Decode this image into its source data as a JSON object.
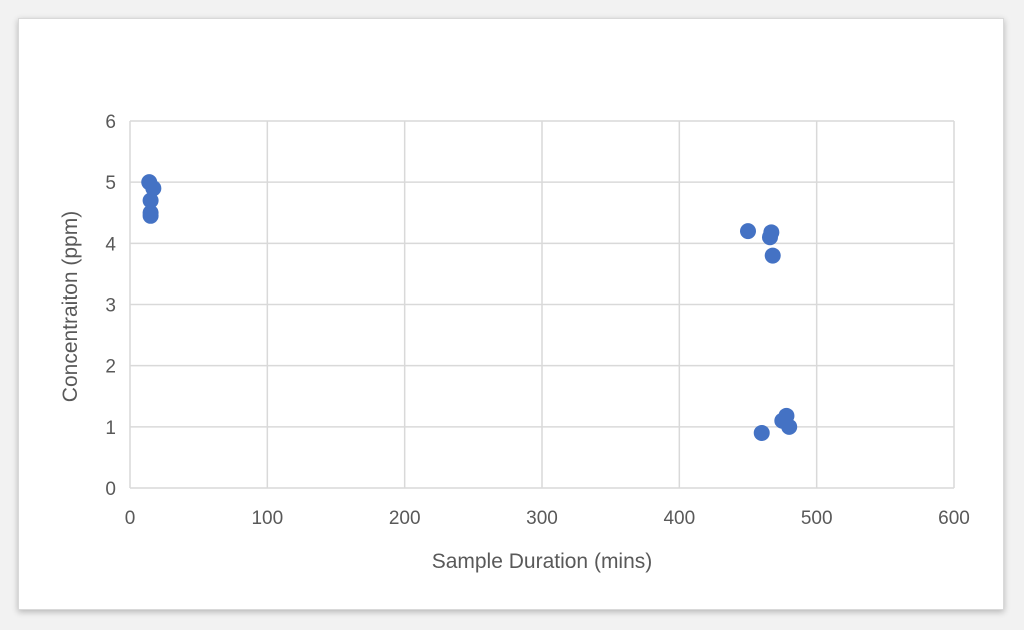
{
  "chart_data": {
    "type": "scatter",
    "title": "",
    "xlabel": "Sample Duration (mins)",
    "ylabel": "Concentraiton (ppm)",
    "xlim": [
      0,
      600
    ],
    "ylim": [
      0,
      6
    ],
    "x_ticks": [
      0,
      100,
      200,
      300,
      400,
      500,
      600
    ],
    "y_ticks": [
      0,
      1,
      2,
      3,
      4,
      5,
      6
    ],
    "grid": true,
    "legend": "none",
    "marker_color": "#4472c4",
    "series": [
      {
        "points": [
          {
            "x": 14,
            "y": 5.0
          },
          {
            "x": 17,
            "y": 4.9
          },
          {
            "x": 15,
            "y": 4.7
          },
          {
            "x": 15,
            "y": 4.5
          },
          {
            "x": 15,
            "y": 4.45
          },
          {
            "x": 450,
            "y": 4.2
          },
          {
            "x": 467,
            "y": 4.18
          },
          {
            "x": 466,
            "y": 4.1
          },
          {
            "x": 468,
            "y": 3.8
          },
          {
            "x": 460,
            "y": 0.9
          },
          {
            "x": 475,
            "y": 1.1
          },
          {
            "x": 478,
            "y": 1.18
          },
          {
            "x": 480,
            "y": 1.0
          }
        ]
      }
    ]
  }
}
